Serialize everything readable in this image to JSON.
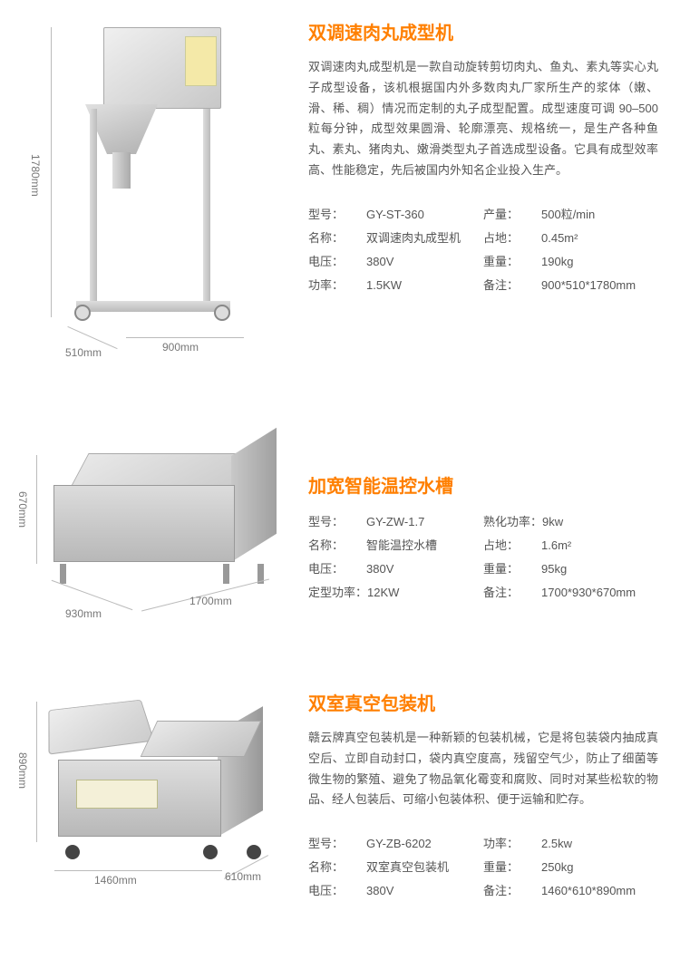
{
  "colors": {
    "title": "#ff7f00",
    "text": "#555555",
    "dim": "#888888",
    "bg": "#ffffff"
  },
  "product1": {
    "title": "双调速肉丸成型机",
    "desc": "双调速肉丸成型机是一款自动旋转剪切肉丸、鱼丸、素丸等实心丸子成型设备，该机根据国内外多数肉丸厂家所生产的浆体（嫩、滑、稀、稠）情况而定制的丸子成型配置。成型速度可调 90–500 粒每分钟，成型效果圆滑、轮廓漂亮、规格统一，是生产各种鱼丸、素丸、猪肉丸、嫩滑类型丸子首选成型设备。它具有成型效率高、性能稳定，先后被国内外知名企业投入生产。",
    "dims": {
      "h": "1780mm",
      "w": "900mm",
      "d": "510mm"
    },
    "specs_left": [
      {
        "label": "型号：",
        "value": "GY-ST-360"
      },
      {
        "label": "名称：",
        "value": "双调速肉丸成型机"
      },
      {
        "label": "电压：",
        "value": "380V"
      },
      {
        "label": "功率：",
        "value": "1.5KW"
      }
    ],
    "specs_right": [
      {
        "label": "产量：",
        "value": "500粒/min"
      },
      {
        "label": "占地：",
        "value": "0.45m²"
      },
      {
        "label": "重量：",
        "value": "190kg"
      },
      {
        "label": "备注：",
        "value": "900*510*1780mm"
      }
    ]
  },
  "product2": {
    "title": "加宽智能温控水槽",
    "dims": {
      "h": "670mm",
      "w": "1700mm",
      "d": "930mm"
    },
    "specs_left": [
      {
        "label": "型号：",
        "value": "GY-ZW-1.7"
      },
      {
        "label": "名称：",
        "value": "智能温控水槽"
      },
      {
        "label": "电压：",
        "value": "380V"
      },
      {
        "label": "定型功率：",
        "value": "12KW"
      }
    ],
    "specs_right": [
      {
        "label": "熟化功率：",
        "value": "9kw"
      },
      {
        "label": "占地：",
        "value": "1.6m²"
      },
      {
        "label": "重量：",
        "value": "95kg"
      },
      {
        "label": "备注：",
        "value": "1700*930*670mm"
      }
    ]
  },
  "product3": {
    "title": "双室真空包装机",
    "desc": "赣云牌真空包装机是一种新颖的包装机械，它是将包装袋内抽成真空后、立即自动封口，袋内真空度高，残留空气少，防止了细菌等微生物的繁殖、避免了物品氧化霉变和腐败、同时对某些松软的物品、经人包装后、可缩小包装体积、便于运输和贮存。",
    "dims": {
      "h": "890mm",
      "w": "1460mm",
      "d": "610mm"
    },
    "specs_left": [
      {
        "label": "型号：",
        "value": "GY-ZB-6202"
      },
      {
        "label": "名称：",
        "value": "双室真空包装机"
      },
      {
        "label": "电压：",
        "value": "380V"
      }
    ],
    "specs_right": [
      {
        "label": "功率：",
        "value": "2.5kw"
      },
      {
        "label": "重量：",
        "value": "250kg"
      },
      {
        "label": "备注：",
        "value": "1460*610*890mm"
      }
    ]
  }
}
